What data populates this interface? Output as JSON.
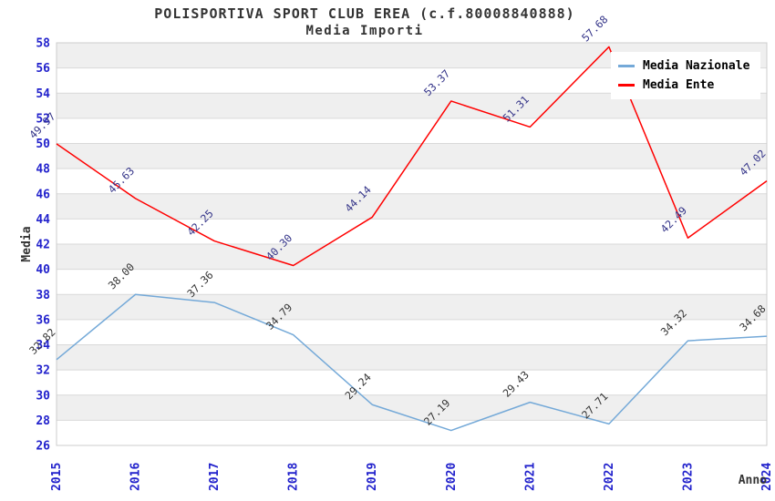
{
  "chart_data": {
    "type": "line",
    "title": "POLISPORTIVA SPORT CLUB EREA (c.f.80008840888)",
    "subtitle": "Media Importi",
    "xlabel": "Anno",
    "ylabel": "Media",
    "categories": [
      "2015",
      "2016",
      "2017",
      "2018",
      "2019",
      "2020",
      "2021",
      "2022",
      "2023",
      "2024"
    ],
    "series": [
      {
        "name": "Media Nazionale",
        "color": "#74a9d8",
        "label_color": "#333333",
        "values": [
          32.82,
          38.0,
          37.36,
          34.79,
          29.24,
          27.19,
          29.43,
          27.71,
          34.32,
          34.68
        ]
      },
      {
        "name": "Media Ente",
        "color": "#ff0000",
        "label_color": "#333388",
        "values": [
          49.97,
          45.63,
          42.25,
          40.3,
          44.14,
          53.37,
          51.31,
          57.68,
          42.49,
          47.02
        ]
      }
    ],
    "ylim": [
      26,
      58
    ],
    "ytick_step": 2,
    "grid": true,
    "legend_position": "top-right",
    "band_colors": [
      "#efefef",
      "#ffffff"
    ],
    "gridline_color": "#d9d9d9",
    "plot_border_color": "#cccccc",
    "tick_label_color": "#2222cc",
    "axis_title_color": "#333333"
  }
}
